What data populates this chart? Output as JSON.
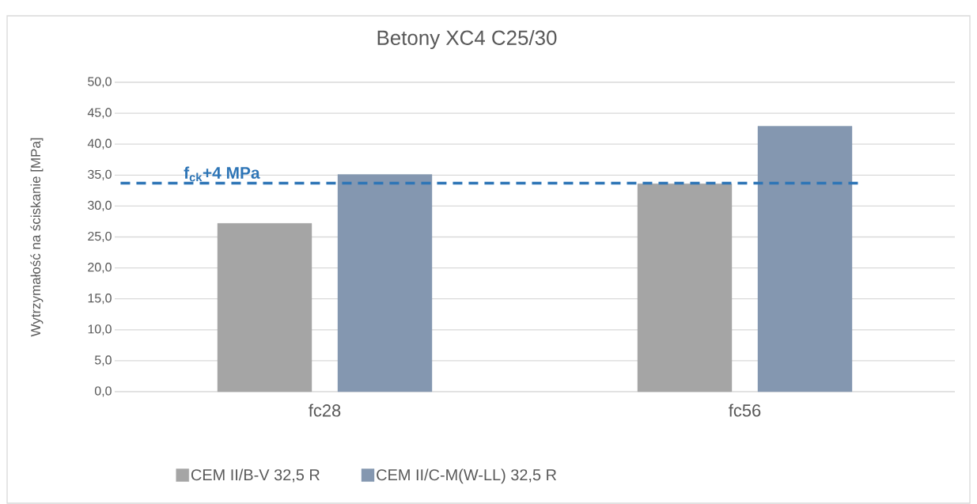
{
  "chart_data": {
    "type": "bar",
    "title": "Betony XC4 C25/30",
    "ylabel": "Wytrzymałość na ściskanie [MPa]",
    "categories": [
      "fc28",
      "fc56"
    ],
    "series": [
      {
        "name": "CEM II/B-V 32,5 R",
        "color": "#a5a5a5",
        "values": [
          27.2,
          33.6
        ]
      },
      {
        "name": "CEM II/C-M(W-LL) 32,5 R",
        "color": "#8497b0",
        "values": [
          35.1,
          42.9
        ]
      }
    ],
    "ylim": [
      0,
      50
    ],
    "yticks": [
      {
        "value": 0,
        "label": "0,0"
      },
      {
        "value": 5,
        "label": "5,0"
      },
      {
        "value": 10,
        "label": "10,0"
      },
      {
        "value": 15,
        "label": "15,0"
      },
      {
        "value": 20,
        "label": "20,0"
      },
      {
        "value": 25,
        "label": "25,0"
      },
      {
        "value": 30,
        "label": "30,0"
      },
      {
        "value": 35,
        "label": "35,0"
      },
      {
        "value": 40,
        "label": "40,0"
      },
      {
        "value": 45,
        "label": "45,0"
      },
      {
        "value": 50,
        "label": "50,0"
      }
    ],
    "ref_lines": [
      {
        "axis": "y",
        "value": 33.7,
        "label": "**f$_{ck}$+4 MPa**",
        "color": "#2e75b6",
        "line_style": "dashed"
      }
    ],
    "grid": "y",
    "legend": "bottom"
  }
}
